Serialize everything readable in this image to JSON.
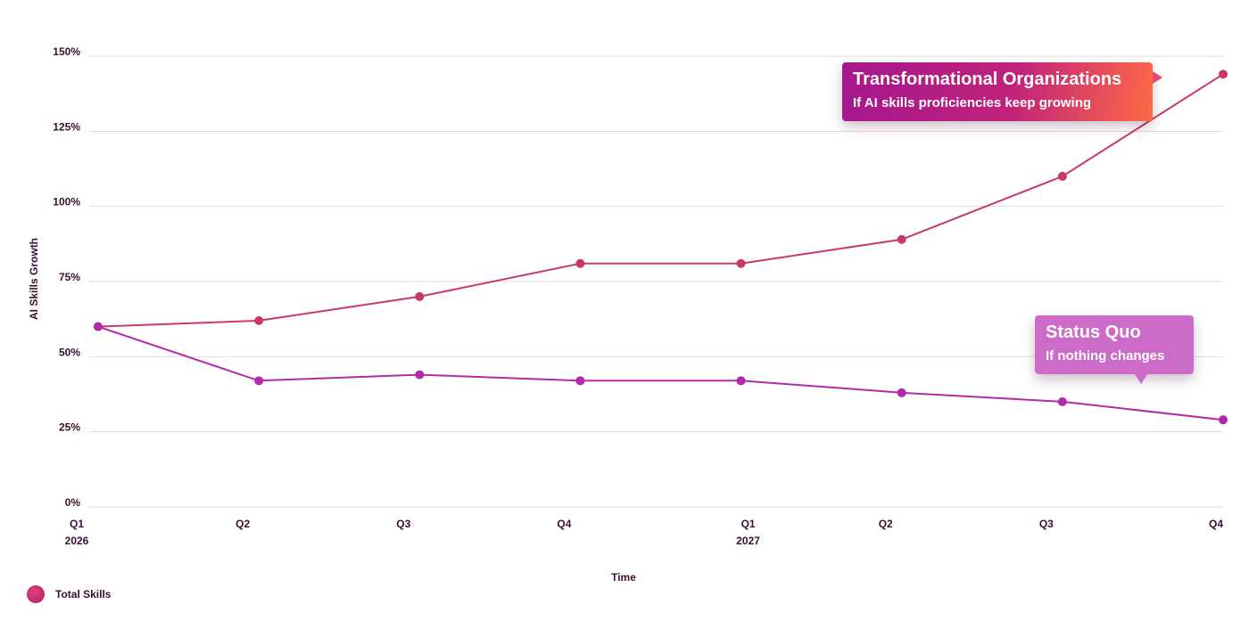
{
  "colors": {
    "transformational": "#c9386a",
    "status_quo": "#b22aa8",
    "grid": "#e6d6ea",
    "text": "#3a1030"
  },
  "legend": {
    "label": "Total Skills"
  },
  "callouts": {
    "transformational": {
      "title": "Transformational Organizations",
      "subtitle": "If AI skills proficiencies keep growing"
    },
    "status_quo": {
      "title": "Status Quo",
      "subtitle": "If nothing changes"
    }
  },
  "chart_data": {
    "type": "line",
    "title": "",
    "xlabel": "Time",
    "ylabel": "AI Skills Growth",
    "ylim": [
      0,
      150
    ],
    "y_ticks": [
      0,
      25,
      50,
      75,
      100,
      125,
      150
    ],
    "y_tick_labels": [
      "0%",
      "25%",
      "50%",
      "75%",
      "100%",
      "125%",
      "150%"
    ],
    "grid": true,
    "legend_position": "bottom-left",
    "categories": [
      "Q1 2026",
      "Q2 2026",
      "Q3 2026",
      "Q4 2026",
      "Q1 2027",
      "Q2 2027",
      "Q3 2027",
      "Q4 2027"
    ],
    "x_tick_labels": [
      {
        "quarter": "Q1",
        "year": "2026"
      },
      {
        "quarter": "Q2",
        "year": ""
      },
      {
        "quarter": "Q3",
        "year": ""
      },
      {
        "quarter": "Q4",
        "year": ""
      },
      {
        "quarter": "Q1",
        "year": "2027"
      },
      {
        "quarter": "Q2",
        "year": ""
      },
      {
        "quarter": "Q3",
        "year": ""
      },
      {
        "quarter": "Q4",
        "year": ""
      }
    ],
    "series": [
      {
        "key": "transformational",
        "values": [
          60,
          62,
          70,
          81,
          81,
          89,
          110,
          144
        ]
      },
      {
        "key": "status_quo",
        "values": [
          60,
          42,
          44,
          42,
          42,
          38,
          35,
          29
        ]
      }
    ]
  }
}
